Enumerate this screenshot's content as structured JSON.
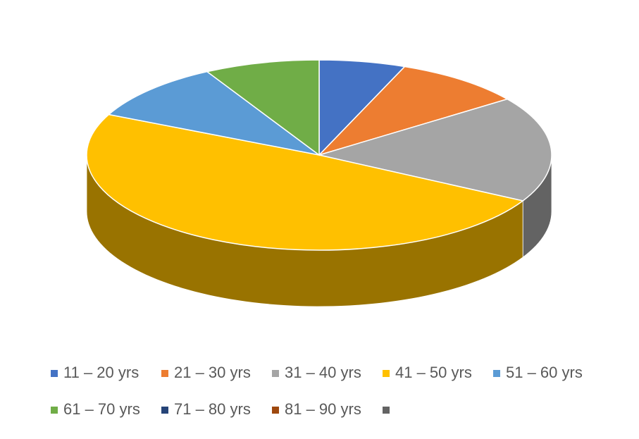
{
  "chart_data": {
    "type": "pie3d",
    "categories": [
      "11 – 20 yrs",
      "21 – 30 yrs",
      "31 – 40 yrs",
      "41 – 50 yrs",
      "51 – 60 yrs",
      "61 – 70 yrs",
      "71 – 80 yrs",
      "81 – 90 yrs",
      null
    ],
    "values": [
      6,
      9,
      18,
      49,
      10,
      8,
      0,
      0,
      0
    ],
    "colors": [
      "#4472c4",
      "#ed7d31",
      "#a5a5a5",
      "#ffc000",
      "#5b9bd5",
      "#70ad47",
      "#264478",
      "#9e480e",
      "#636363"
    ],
    "legend": "bottom"
  }
}
